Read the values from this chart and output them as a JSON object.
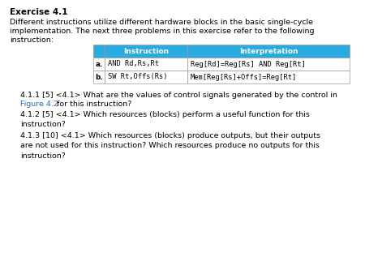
{
  "title": "Exercise 4.1",
  "intro_lines": [
    "Different instructions utilize different hardware blocks in the basic single-cycle",
    "implementation. The next three problems in this exercise refer to the following",
    "instruction:"
  ],
  "table_header": [
    "Instruction",
    "Interpretation"
  ],
  "table_header_color": "#29ABE2",
  "table_rows": [
    [
      "a.",
      "AND Rd,Rs,Rt",
      "Reg[Rd]=Reg[Rs] AND Reg[Rt]"
    ],
    [
      "b.",
      "SW Rt,Offs(Rs)",
      "Mem[Reg[Rs]+Offs]=Reg[Rt]"
    ]
  ],
  "table_border_color": "#999999",
  "body_text_411_pre": "4.1.1 [5] <4.1> What are the values of control signals generated by the control in",
  "body_text_411_link": "Figure 4.2",
  "body_text_411_post": " for this instruction?",
  "body_text_412": "4.1.2 [5] <4.1> Which resources (blocks) perform a useful function for this\ninstruction?",
  "body_text_413": "4.1.3 [10] <4.1> Which resources (blocks) produce outputs, but their outputs\nare not used for this instruction? Which resources produce no outputs for this\ninstruction?",
  "link_color": "#3366CC",
  "background_color": "#ffffff",
  "text_color": "#000000",
  "font_size_title": 7.5,
  "font_size_body": 6.8,
  "font_size_table_header": 6.5,
  "font_size_table_body": 6.3
}
